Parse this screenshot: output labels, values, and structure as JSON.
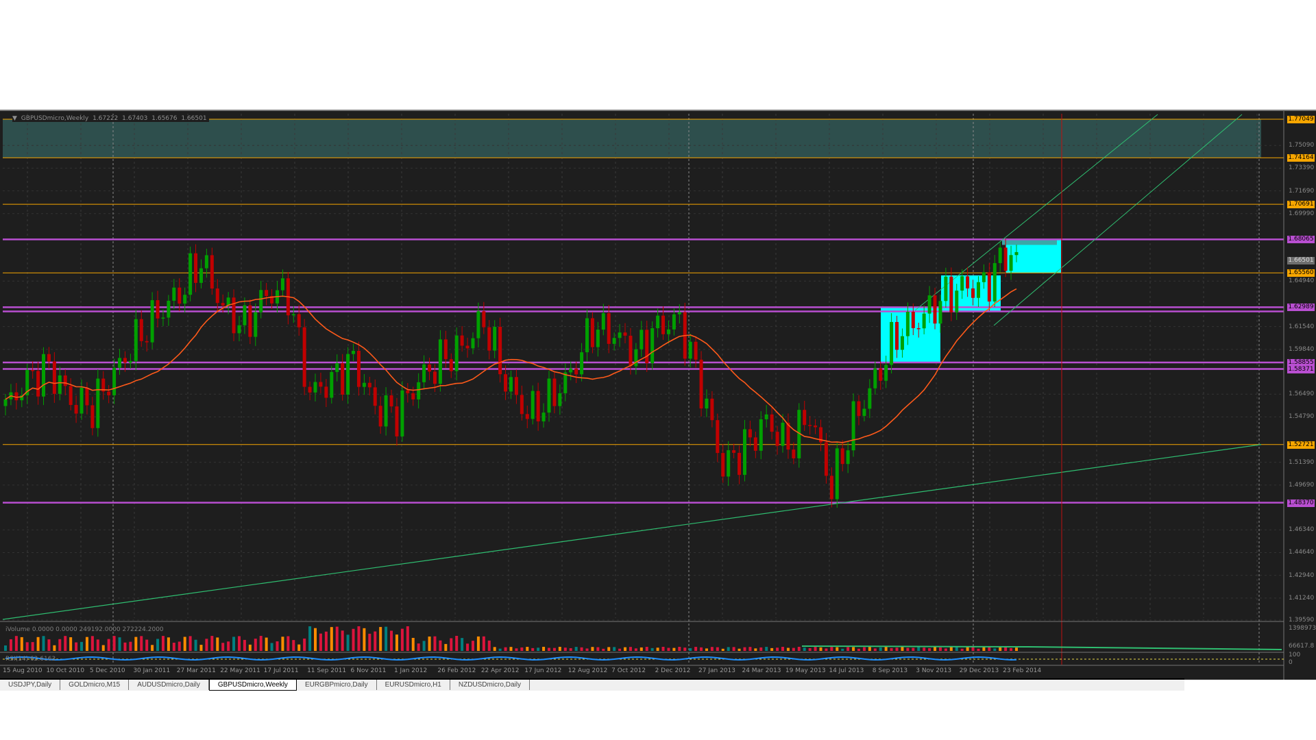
{
  "chart": {
    "symbol": "GBPUSDmicro,Weekly",
    "ohlc": [
      "1.67222",
      "1.67403",
      "1.65676",
      "1.66501"
    ],
    "current_price": "1.66501",
    "colors": {
      "bull": "#00a000",
      "bear": "#c00000",
      "ma": "#ff5a1a",
      "orange_level": "#f7a600",
      "purple_level": "#b94fd1",
      "trend": "#2fbf71",
      "box": "#00ffff",
      "zone": "#2e4f4d"
    }
  },
  "price_axis": {
    "ticks": [
      "1.75090",
      "1.73390",
      "1.71690",
      "1.69990",
      "1.64940",
      "1.61540",
      "1.59840",
      "1.56490",
      "1.54790",
      "1.51390",
      "1.49690",
      "1.46340",
      "1.44640",
      "1.42940",
      "1.41240",
      "1.39590"
    ],
    "orange_levels": [
      "1.77049",
      "1.74164",
      "1.70691",
      "1.65560",
      "1.52721"
    ],
    "purple_levels": [
      "1.68065",
      "1.62989",
      "1.58855",
      "1.58371",
      "1.48370"
    ]
  },
  "chart_data": {
    "type": "candlestick",
    "closes": [
      [
        "15 Aug 2010",
        1.555
      ],
      [
        "12 Sep 2010",
        1.575
      ],
      [
        "10 Oct 2010",
        1.585
      ],
      [
        "7 Nov 2010",
        1.56
      ],
      [
        "5 Dec 2010",
        1.555
      ],
      [
        "2 Jan 2011",
        1.58
      ],
      [
        "30 Jan 2011",
        1.605
      ],
      [
        "27 Feb 2011",
        1.625
      ],
      [
        "27 Mar 2011",
        1.64
      ],
      [
        "24 Apr 2011",
        1.665
      ],
      [
        "22 May 2011",
        1.63
      ],
      [
        "19 Jun 2011",
        1.615
      ],
      [
        "17 Jul 2011",
        1.64
      ],
      [
        "14 Aug 2011",
        1.64
      ],
      [
        "11 Sep 2011",
        1.565
      ],
      [
        "9 Oct 2011",
        1.575
      ],
      [
        "6 Nov 2011",
        1.59
      ],
      [
        "4 Dec 2011",
        1.555
      ],
      [
        "1 Jan 2012",
        1.55
      ],
      [
        "29 Jan 2012",
        1.575
      ],
      [
        "26 Feb 2012",
        1.59
      ],
      [
        "25 Mar 2012",
        1.6
      ],
      [
        "22 Apr 2012",
        1.62
      ],
      [
        "20 May 2012",
        1.575
      ],
      [
        "17 Jun 2012",
        1.55
      ],
      [
        "15 Jul 2012",
        1.56
      ],
      [
        "12 Aug 2012",
        1.58
      ],
      [
        "9 Sep 2012",
        1.615
      ],
      [
        "7 Oct 2012",
        1.61
      ],
      [
        "4 Nov 2012",
        1.595
      ],
      [
        "2 Dec 2012",
        1.615
      ],
      [
        "30 Dec 2012",
        1.62
      ],
      [
        "27 Jan 2013",
        1.57
      ],
      [
        "24 Feb 2013",
        1.51
      ],
      [
        "24 Mar 2013",
        1.525
      ],
      [
        "21 Apr 2013",
        1.545
      ],
      [
        "19 May 2013",
        1.525
      ],
      [
        "16 Jun 2013",
        1.55
      ],
      [
        "14 Jul 2013",
        1.495
      ],
      [
        "11 Aug 2013",
        1.545
      ],
      [
        "8 Sep 2013",
        1.575
      ],
      [
        "6 Oct 2013",
        1.61
      ],
      [
        "3 Nov 2013",
        1.62
      ],
      [
        "1 Dec 2013",
        1.635
      ],
      [
        "29 Dec 2013",
        1.645
      ],
      [
        "26 Jan 2014",
        1.645
      ],
      [
        "23 Feb 2014",
        1.67
      ],
      [
        "9 Mar 2014",
        1.665
      ]
    ],
    "ma_period": 20
  },
  "volume": {
    "label": "iVolume 0.0000 0.0000 249192.0000 272224.2000",
    "ticks": [
      "1398973.8",
      "66617.8"
    ]
  },
  "rsi": {
    "label": "RSI(14) 62.6163",
    "ticks": [
      "100",
      "0"
    ]
  },
  "date_axis": [
    "15 Aug 2010",
    "10 Oct 2010",
    "5 Dec 2010",
    "30 Jan 2011",
    "27 Mar 2011",
    "22 May 2011",
    "17 Jul 2011",
    "11 Sep 2011",
    "6 Nov 2011",
    "1 Jan 2012",
    "26 Feb 2012",
    "22 Apr 2012",
    "17 Jun 2012",
    "12 Aug 2012",
    "7 Oct 2012",
    "2 Dec 2012",
    "27 Jan 2013",
    "24 Mar 2013",
    "19 May 2013",
    "14 Jul 2013",
    "8 Sep 2013",
    "3 Nov 2013",
    "29 Dec 2013",
    "23 Feb 2014"
  ],
  "tabs": [
    {
      "label": "USDJPY,Daily"
    },
    {
      "label": "GOLDmicro,M15"
    },
    {
      "label": "AUDUSDmicro,Daily"
    },
    {
      "label": "GBPUSDmicro,Weekly",
      "active": true
    },
    {
      "label": "EURGBPmicro,Daily"
    },
    {
      "label": "EURUSDmicro,H1"
    },
    {
      "label": "NZDUSDmicro,Daily"
    }
  ]
}
